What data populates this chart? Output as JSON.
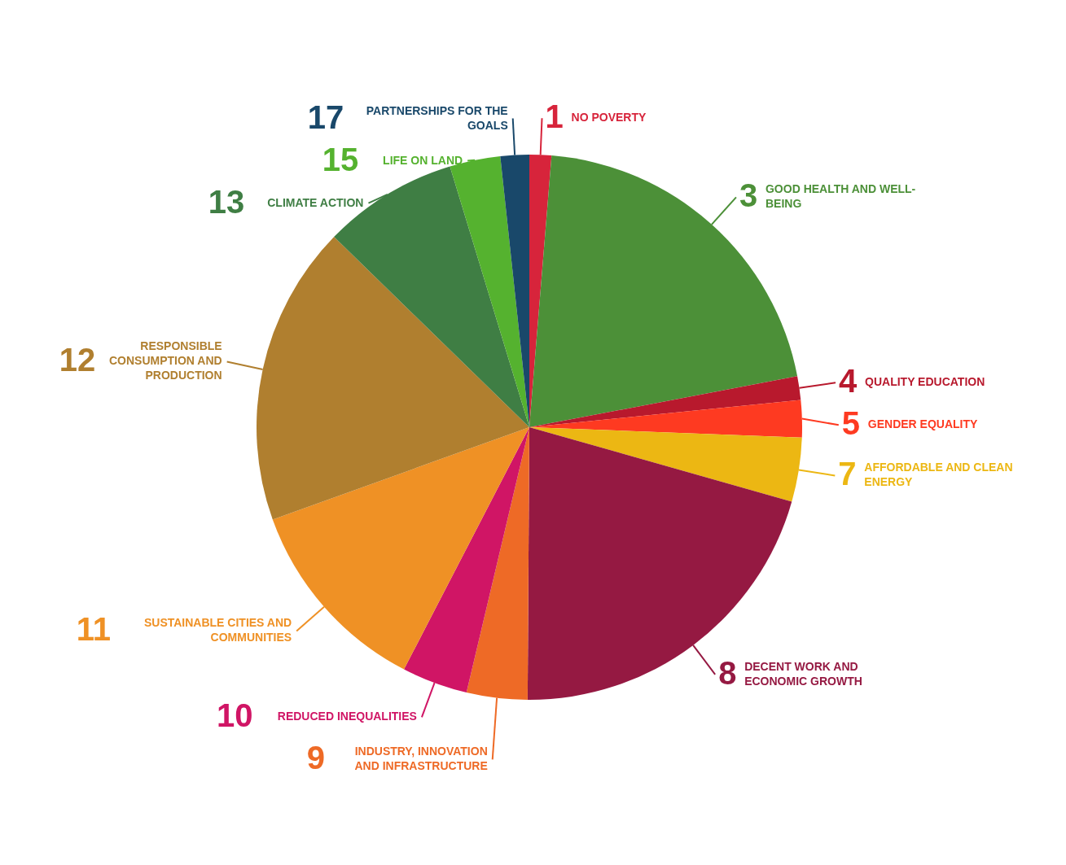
{
  "chart_data": {
    "type": "pie",
    "categories": [
      "1 NO POVERTY",
      "3 GOOD HEALTH AND WELL-BEING",
      "4 QUALITY EDUCATION",
      "5 GENDER EQUALITY",
      "7 AFFORDABLE AND CLEAN ENERGY",
      "8 DECENT WORK AND ECONOMIC GROWTH",
      "9 INDUSTRY, INNOVATION AND INFRASTRUCTURE",
      "10 REDUCED INEQUALITIES",
      "11 SUSTAINABLE CITIES AND COMMUNITIES",
      "12 RESPONSIBLE CONSUMPTION AND PRODUCTION",
      "13 CLIMATE ACTION",
      "15 LIFE ON LAND",
      "17 PARTNERSHIPS FOR THE GOALS"
    ],
    "values": [
      1.3,
      20.7,
      1.4,
      2.2,
      3.8,
      20.7,
      3.6,
      3.9,
      11.9,
      17.8,
      8.0,
      3.0,
      1.7
    ],
    "colors": [
      "#d7243b",
      "#4c9038",
      "#b8192d",
      "#fe3a21",
      "#ecb713",
      "#951942",
      "#ee6a26",
      "#d01565",
      "#ef9125",
      "#b07f2f",
      "#3f7e44",
      "#55b22f",
      "#19486a"
    ]
  }
}
